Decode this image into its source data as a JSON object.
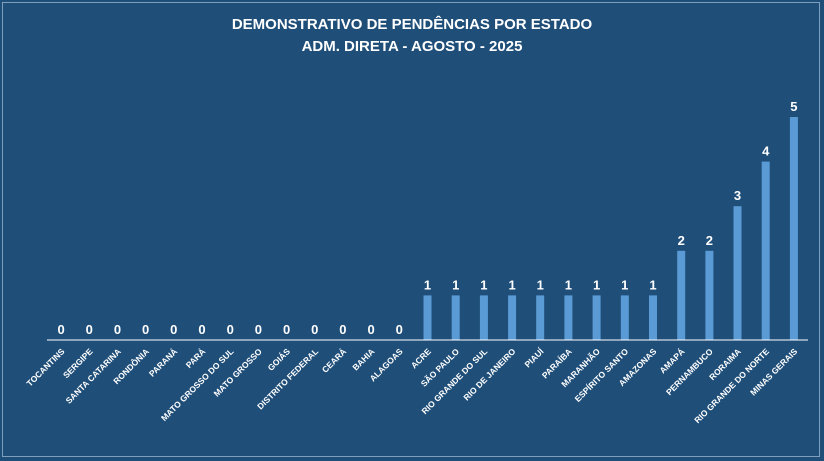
{
  "chart_data": {
    "type": "bar",
    "title": "DEMONSTRATIVO DE PENDÊNCIAS POR ESTADO",
    "subtitle": "ADM. DIRETA - AGOSTO - 2025",
    "xlabel": "",
    "ylabel": "",
    "ylim": [
      0,
      5
    ],
    "grid": false,
    "legend": "none",
    "categories": [
      "TOCANTINS",
      "SERGIPE",
      "SANTA CATARINA",
      "RONDÔNIA",
      "PARANÁ",
      "PARÁ",
      "MATO GROSSO DO SUL",
      "MATO GROSSO",
      "GOIÁS",
      "DISTRITO FEDERAL",
      "CEARÁ",
      "BAHIA",
      "ALAGOAS",
      "ACRE",
      "SÃO PAULO",
      "RIO GRANDE DO SUL",
      "RIO DE JANEIRO",
      "PIAUÍ",
      "PARAÍBA",
      "MARANHÃO",
      "ESPÍRITO SANTO",
      "AMAZONAS",
      "AMAPÁ",
      "PERNAMBUCO",
      "RORAIMA",
      "RIO GRANDE DO NORTE",
      "MINAS GERAIS"
    ],
    "values": [
      0,
      0,
      0,
      0,
      0,
      0,
      0,
      0,
      0,
      0,
      0,
      0,
      0,
      1,
      1,
      1,
      1,
      1,
      1,
      1,
      1,
      1,
      2,
      2,
      3,
      4,
      5
    ]
  },
  "colors": {
    "background": "#1f4e79",
    "bar": "#5b9bd5",
    "text": "#ffffff",
    "axis": "#ffffff"
  }
}
